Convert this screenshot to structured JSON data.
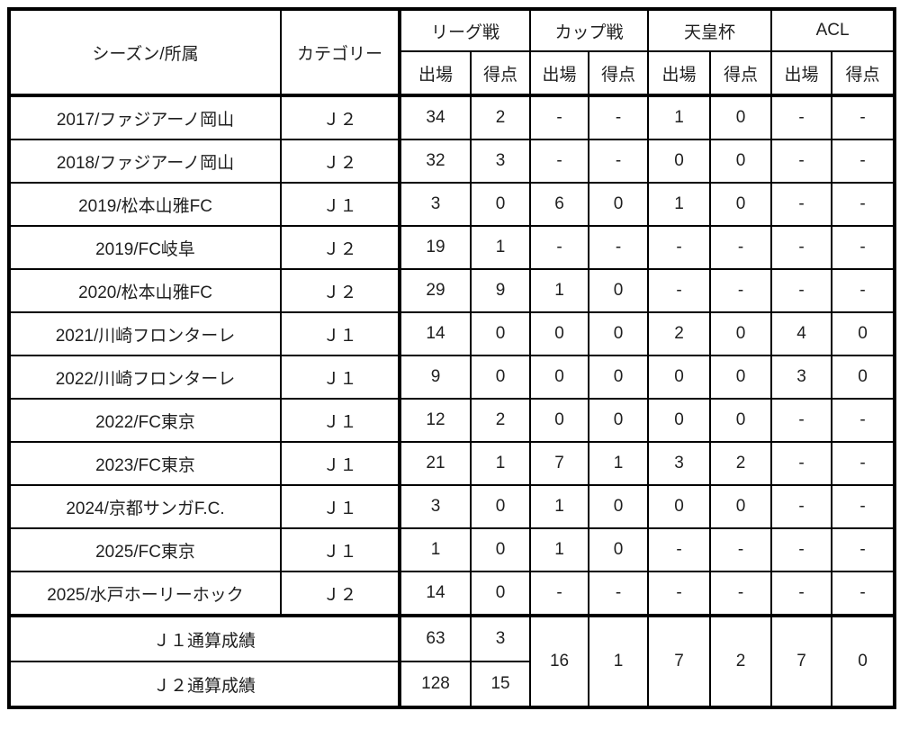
{
  "table": {
    "header": {
      "season_label": "シーズン/所属",
      "category_label": "カテゴリー",
      "groups": [
        "リーグ戦",
        "カップ戦",
        "天皇杯",
        "ACL"
      ],
      "subheaders": [
        "出場",
        "得点",
        "出場",
        "得点",
        "出場",
        "得点",
        "出場",
        "得点"
      ]
    },
    "rows": [
      {
        "season": "2017/ファジアーノ岡山",
        "category": "Ｊ２",
        "stats": [
          "34",
          "2",
          "-",
          "-",
          "1",
          "0",
          "-",
          "-"
        ]
      },
      {
        "season": "2018/ファジアーノ岡山",
        "category": "Ｊ２",
        "stats": [
          "32",
          "3",
          "-",
          "-",
          "0",
          "0",
          "-",
          "-"
        ]
      },
      {
        "season": "2019/松本山雅FC",
        "category": "Ｊ１",
        "stats": [
          "3",
          "0",
          "6",
          "0",
          "1",
          "0",
          "-",
          "-"
        ]
      },
      {
        "season": "2019/FC岐阜",
        "category": "Ｊ２",
        "stats": [
          "19",
          "1",
          "-",
          "-",
          "-",
          "-",
          "-",
          "-"
        ]
      },
      {
        "season": "2020/松本山雅FC",
        "category": "Ｊ２",
        "stats": [
          "29",
          "9",
          "1",
          "0",
          "-",
          "-",
          "-",
          "-"
        ]
      },
      {
        "season": "2021/川崎フロンターレ",
        "category": "Ｊ１",
        "stats": [
          "14",
          "0",
          "0",
          "0",
          "2",
          "0",
          "4",
          "0"
        ]
      },
      {
        "season": "2022/川崎フロンターレ",
        "category": "Ｊ１",
        "stats": [
          "9",
          "0",
          "0",
          "0",
          "0",
          "0",
          "3",
          "0"
        ]
      },
      {
        "season": "2022/FC東京",
        "category": "Ｊ１",
        "stats": [
          "12",
          "2",
          "0",
          "0",
          "0",
          "0",
          "-",
          "-"
        ]
      },
      {
        "season": "2023/FC東京",
        "category": "Ｊ１",
        "stats": [
          "21",
          "1",
          "7",
          "1",
          "3",
          "2",
          "-",
          "-"
        ]
      },
      {
        "season": "2024/京都サンガF.C.",
        "category": "Ｊ１",
        "stats": [
          "3",
          "0",
          "1",
          "0",
          "0",
          "0",
          "-",
          "-"
        ]
      },
      {
        "season": "2025/FC東京",
        "category": "Ｊ１",
        "stats": [
          "1",
          "0",
          "1",
          "0",
          "-",
          "-",
          "-",
          "-"
        ]
      },
      {
        "season": "2025/水戸ホーリーホック",
        "category": "Ｊ２",
        "stats": [
          "14",
          "0",
          "-",
          "-",
          "-",
          "-",
          "-",
          "-"
        ]
      }
    ],
    "totals": [
      {
        "label": "Ｊ１通算成績",
        "league_apps": "63",
        "league_goals": "3"
      },
      {
        "label": "Ｊ２通算成績",
        "league_apps": "128",
        "league_goals": "15"
      }
    ],
    "totals_merged": {
      "cup_apps": "16",
      "cup_goals": "1",
      "emperor_apps": "7",
      "emperor_goals": "2",
      "acl_apps": "7",
      "acl_goals": "0"
    }
  },
  "colors": {
    "border": "#000000",
    "background": "#ffffff",
    "text": "#1f1f1f"
  }
}
